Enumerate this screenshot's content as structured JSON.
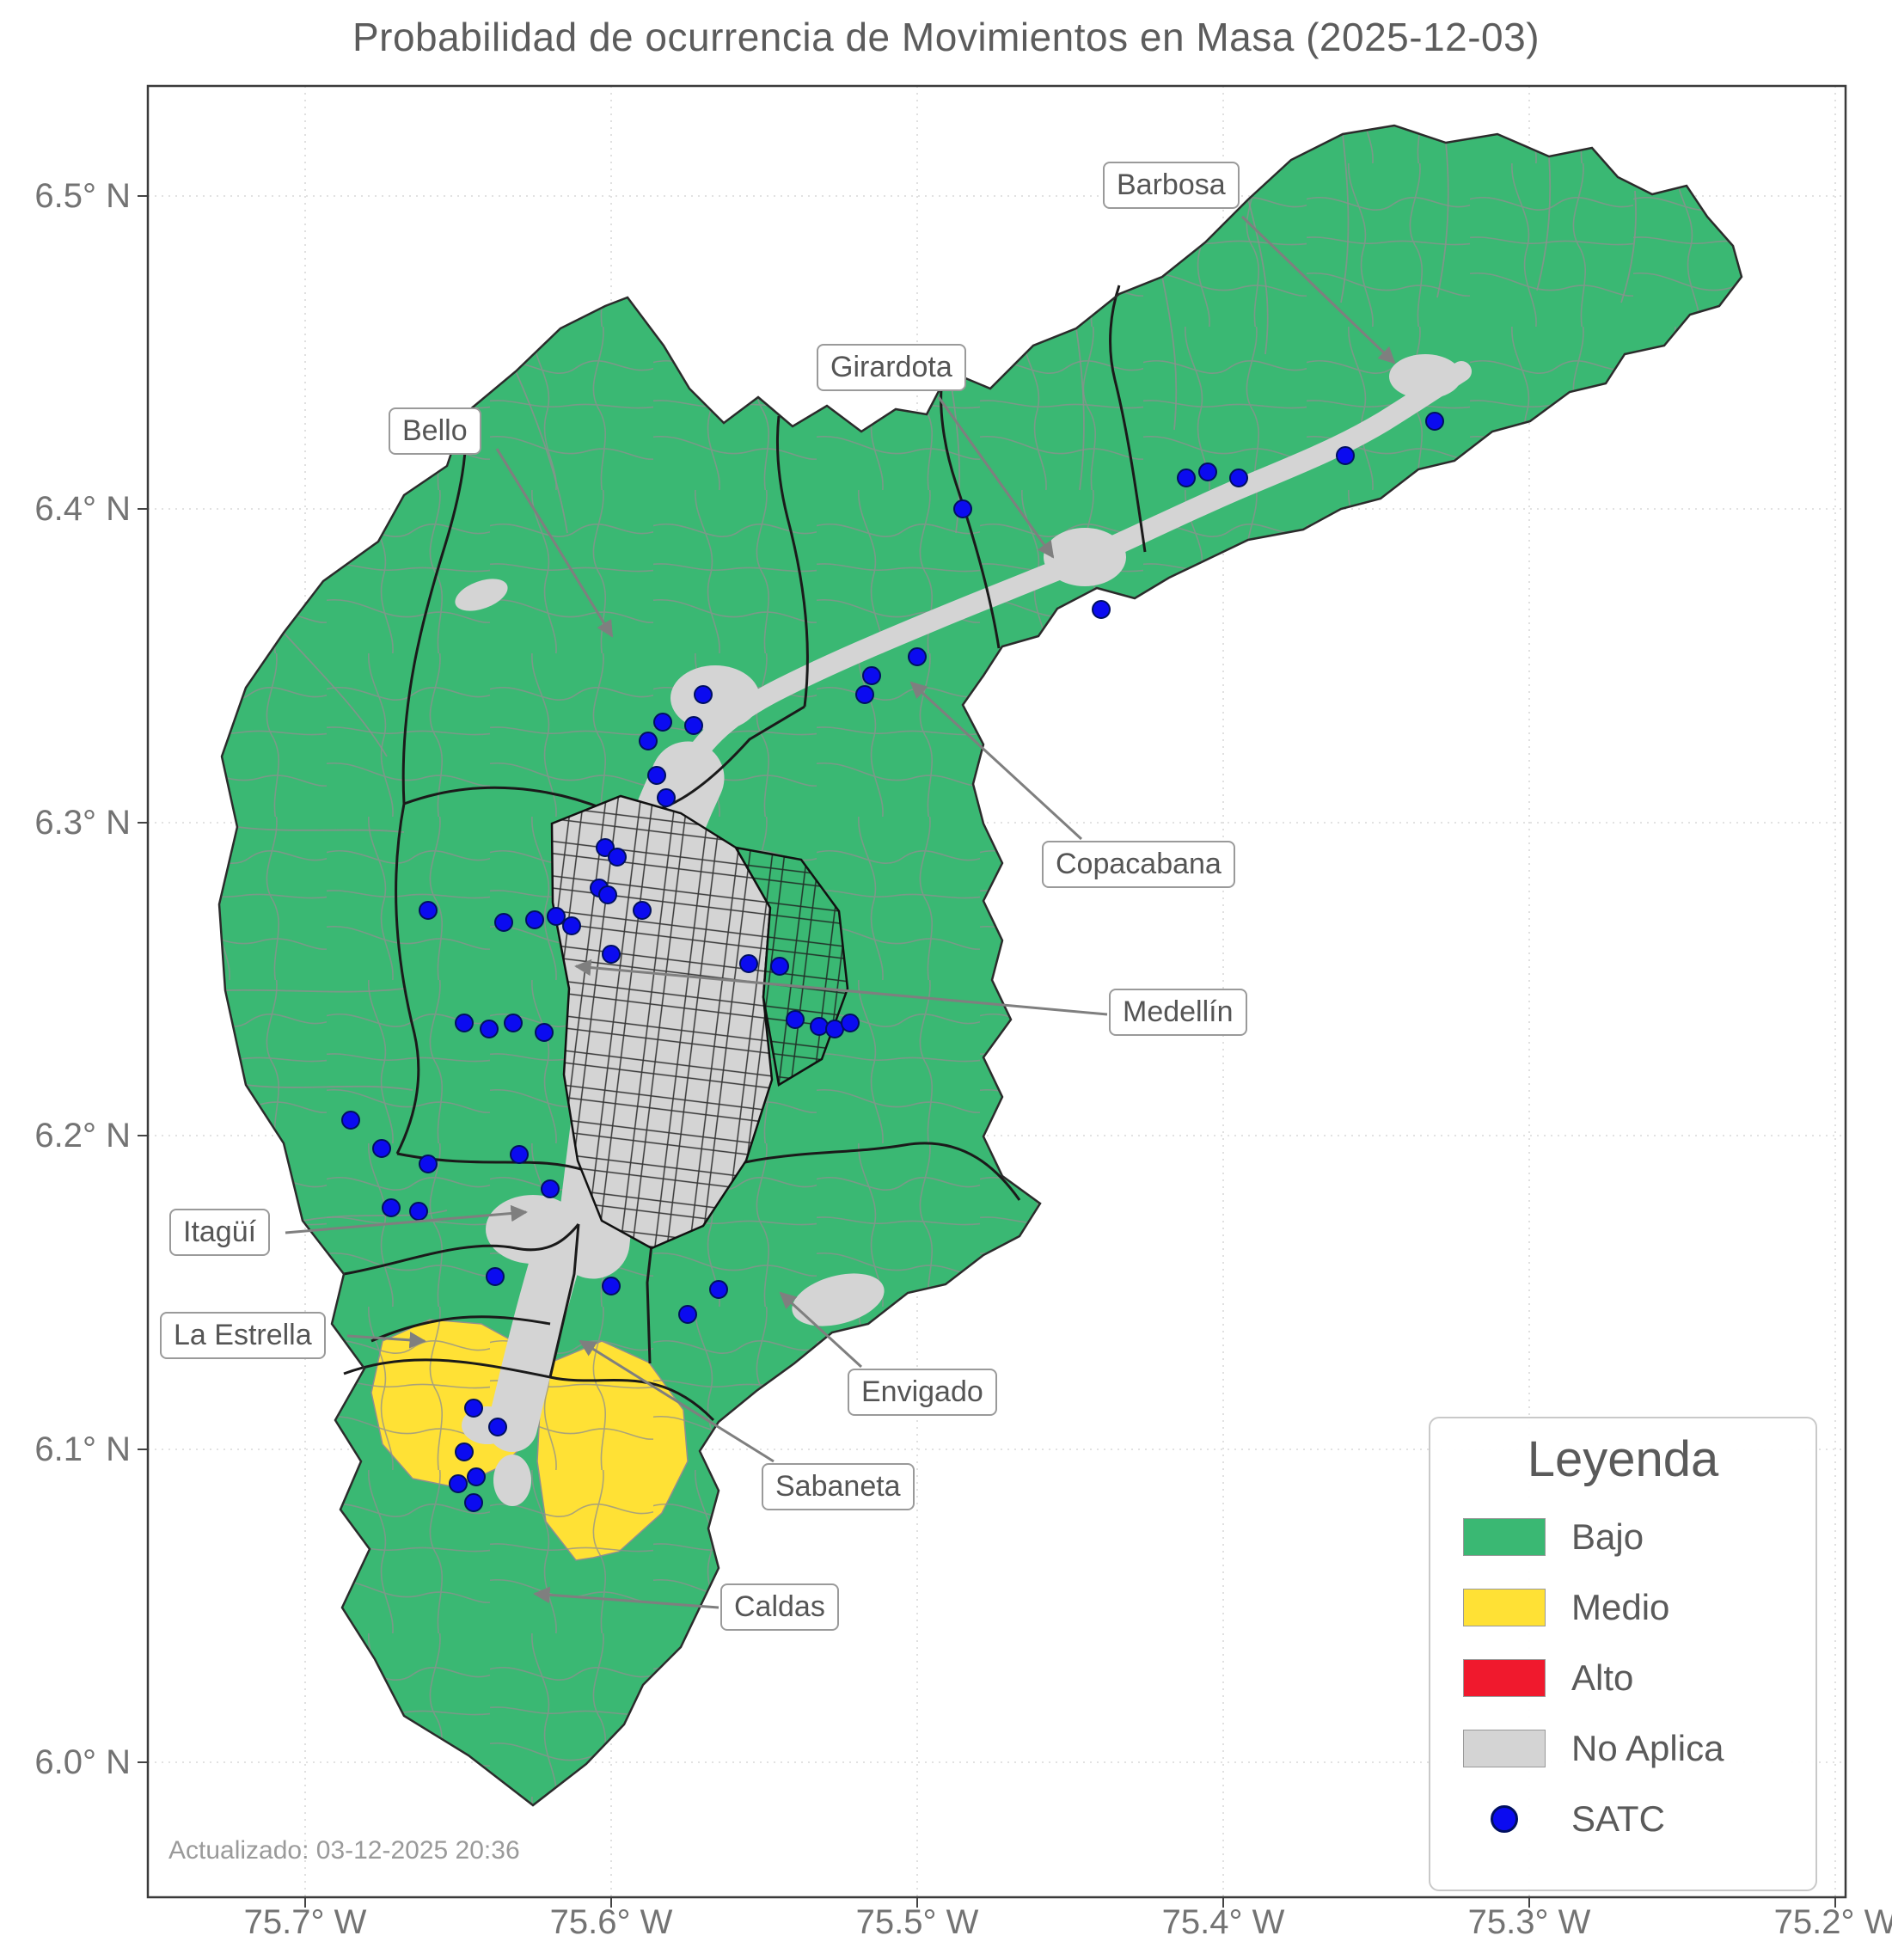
{
  "title": "Probabilidad de ocurrencia de Movimientos en Masa (2025-12-03)",
  "updated": "Actualizado: 03-12-2025 20:36",
  "axes": {
    "x_ticks": [
      "75.7° W",
      "75.6° W",
      "75.5° W",
      "75.4° W",
      "75.3° W",
      "75.2° W"
    ],
    "y_ticks": [
      "6.5° N",
      "6.4° N",
      "6.3° N",
      "6.2° N",
      "6.1° N",
      "6.0° N"
    ]
  },
  "legend": {
    "title": "Leyenda",
    "items": [
      {
        "label": "Bajo",
        "color": "#3ab873",
        "type": "patch"
      },
      {
        "label": "Medio",
        "color": "#ffe135",
        "type": "patch"
      },
      {
        "label": "Alto",
        "color": "#f0192d",
        "type": "patch"
      },
      {
        "label": "No Aplica",
        "color": "#d4d4d4",
        "type": "patch"
      },
      {
        "label": "SATC",
        "color": "#0b0bf0",
        "type": "marker"
      }
    ]
  },
  "annotations": [
    {
      "label": "Barbosa"
    },
    {
      "label": "Girardota"
    },
    {
      "label": "Bello"
    },
    {
      "label": "Copacabana"
    },
    {
      "label": "Medellín"
    },
    {
      "label": "Itagüí"
    },
    {
      "label": "La Estrella"
    },
    {
      "label": "Envigado"
    },
    {
      "label": "Sabaneta"
    },
    {
      "label": "Caldas"
    }
  ],
  "map": {
    "risk_levels": {
      "Bajo": "#3ab873",
      "Medio": "#ffe135",
      "Alto": "#f0192d",
      "No Aplica": "#d4d4d4"
    },
    "satc_color": "#0b0bf0",
    "satc_edge": "#001060",
    "satc_count": 54,
    "satc_points": [
      [
        1669,
        490
      ],
      [
        1565,
        530
      ],
      [
        1441,
        556
      ],
      [
        1405,
        549
      ],
      [
        1380,
        556
      ],
      [
        1120,
        592
      ],
      [
        1281,
        709
      ],
      [
        1067,
        764
      ],
      [
        1014,
        786
      ],
      [
        1006,
        808
      ],
      [
        818,
        808
      ],
      [
        771,
        840
      ],
      [
        807,
        844
      ],
      [
        754,
        862
      ],
      [
        764,
        902
      ],
      [
        775,
        928
      ],
      [
        704,
        986
      ],
      [
        718,
        997
      ],
      [
        697,
        1033
      ],
      [
        707,
        1041
      ],
      [
        747,
        1059
      ],
      [
        498,
        1059
      ],
      [
        586,
        1073
      ],
      [
        622,
        1070
      ],
      [
        647,
        1066
      ],
      [
        665,
        1077
      ],
      [
        711,
        1110
      ],
      [
        871,
        1121
      ],
      [
        907,
        1124
      ],
      [
        925,
        1186
      ],
      [
        953,
        1194
      ],
      [
        971,
        1197
      ],
      [
        989,
        1190
      ],
      [
        540,
        1190
      ],
      [
        569,
        1197
      ],
      [
        597,
        1190
      ],
      [
        633,
        1201
      ],
      [
        408,
        1303
      ],
      [
        444,
        1336
      ],
      [
        498,
        1354
      ],
      [
        604,
        1343
      ],
      [
        640,
        1383
      ],
      [
        455,
        1405
      ],
      [
        487,
        1409
      ],
      [
        576,
        1485
      ],
      [
        711,
        1496
      ],
      [
        836,
        1500
      ],
      [
        800,
        1529
      ],
      [
        551,
        1638
      ],
      [
        579,
        1660
      ],
      [
        540,
        1689
      ],
      [
        554,
        1718
      ],
      [
        533,
        1726
      ],
      [
        551,
        1748
      ]
    ]
  }
}
